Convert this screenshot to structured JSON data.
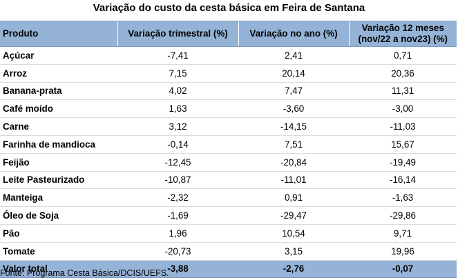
{
  "title": "Variação do custo da cesta básica em Feira de Santana",
  "headers": {
    "produto": "Produto",
    "trimestral": "Variação trimestral (%)",
    "ano": "Variação no ano (%)",
    "doze_meses_l1": "Variação 12 meses",
    "doze_meses_l2": "(nov/22 a nov23) (%)"
  },
  "rows": [
    {
      "produto": "Açúcar",
      "trimestral": "-7,41",
      "ano": "2,41",
      "doze": "0,71"
    },
    {
      "produto": "Arroz",
      "trimestral": "7,15",
      "ano": "20,14",
      "doze": "20,36"
    },
    {
      "produto": "Banana-prata",
      "trimestral": "4,02",
      "ano": "7,47",
      "doze": "11,31"
    },
    {
      "produto": "Café moído",
      "trimestral": "1,63",
      "ano": "-3,60",
      "doze": "-3,00"
    },
    {
      "produto": "Carne",
      "trimestral": "3,12",
      "ano": "-14,15",
      "doze": "-11,03"
    },
    {
      "produto": "Farinha de mandioca",
      "trimestral": "-0,14",
      "ano": "7,51",
      "doze": "15,67"
    },
    {
      "produto": "Feijão",
      "trimestral": "-12,45",
      "ano": "-20,84",
      "doze": "-19,49"
    },
    {
      "produto": "Leite Pasteurizado",
      "trimestral": "-10,87",
      "ano": "-11,01",
      "doze": "-16,14"
    },
    {
      "produto": "Manteiga",
      "trimestral": "-2,32",
      "ano": "0,91",
      "doze": "-1,63"
    },
    {
      "produto": "Óleo de Soja",
      "trimestral": "-1,69",
      "ano": "-29,47",
      "doze": "-29,86"
    },
    {
      "produto": "Pão",
      "trimestral": "1,96",
      "ano": "10,54",
      "doze": "9,71"
    },
    {
      "produto": "Tomate",
      "trimestral": "-20,73",
      "ano": "3,15",
      "doze": "19,96"
    }
  ],
  "total": {
    "produto": "Valor total",
    "trimestral": "-3,88",
    "ano": "-2,76",
    "doze": "-0,07"
  },
  "source": "Fonte: Programa Cesta Básica/DCIS/UEFS.",
  "colors": {
    "header_bg": "#95b3d7"
  }
}
